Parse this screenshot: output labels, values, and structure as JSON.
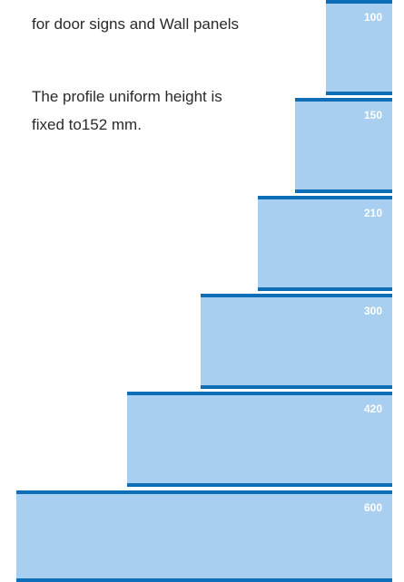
{
  "intro": {
    "line1": "for door signs and Wall panels",
    "line2": "The profile uniform height is",
    "line3": "fixed to152 mm."
  },
  "panels": [
    {
      "label": "100"
    },
    {
      "label": "150"
    },
    {
      "label": "210"
    },
    {
      "label": "300"
    },
    {
      "label": "420"
    },
    {
      "label": "600"
    }
  ],
  "colors": {
    "panel_fill": "#a8cff0",
    "panel_border": "#0e6fb8",
    "label_text": "#ffffff",
    "body_text": "#2a2a2a"
  }
}
